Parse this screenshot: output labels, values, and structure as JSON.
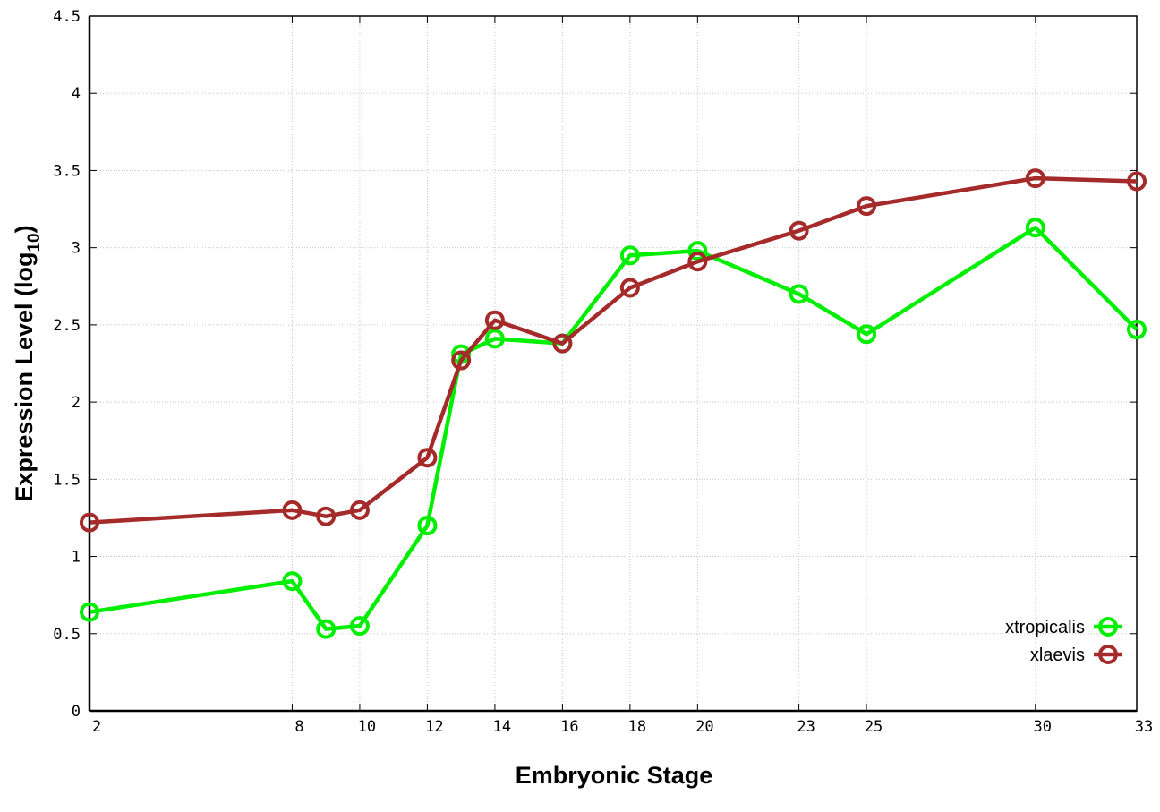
{
  "chart_data": {
    "type": "line",
    "title": "",
    "xlabel": "Embryonic Stage",
    "ylabel_main": "Expression Level (log",
    "ylabel_sub": "10",
    "ylabel_close": ")",
    "xlim": [
      2,
      33
    ],
    "ylim": [
      0,
      4.5
    ],
    "x_ticks": [
      2,
      8,
      10,
      12,
      14,
      16,
      18,
      20,
      23,
      25,
      30,
      33
    ],
    "y_ticks": [
      0,
      0.5,
      1,
      1.5,
      2,
      2.5,
      3,
      3.5,
      4,
      4.5
    ],
    "grid": true,
    "legend_position": "bottom-right",
    "x": [
      2,
      8,
      9,
      10,
      12,
      13,
      14,
      16,
      18,
      20,
      23,
      25,
      30,
      33
    ],
    "series": [
      {
        "name": "xtropicalis",
        "color": "#00ee00",
        "values": [
          0.64,
          0.84,
          0.53,
          0.55,
          1.2,
          2.31,
          2.41,
          2.38,
          2.95,
          2.98,
          2.7,
          2.44,
          3.13,
          2.47
        ]
      },
      {
        "name": "xlaevis",
        "color": "#a52a2a",
        "values": [
          1.22,
          1.3,
          1.26,
          1.3,
          1.64,
          2.27,
          2.53,
          2.38,
          2.74,
          2.91,
          3.11,
          3.27,
          3.45,
          3.43
        ]
      }
    ]
  }
}
